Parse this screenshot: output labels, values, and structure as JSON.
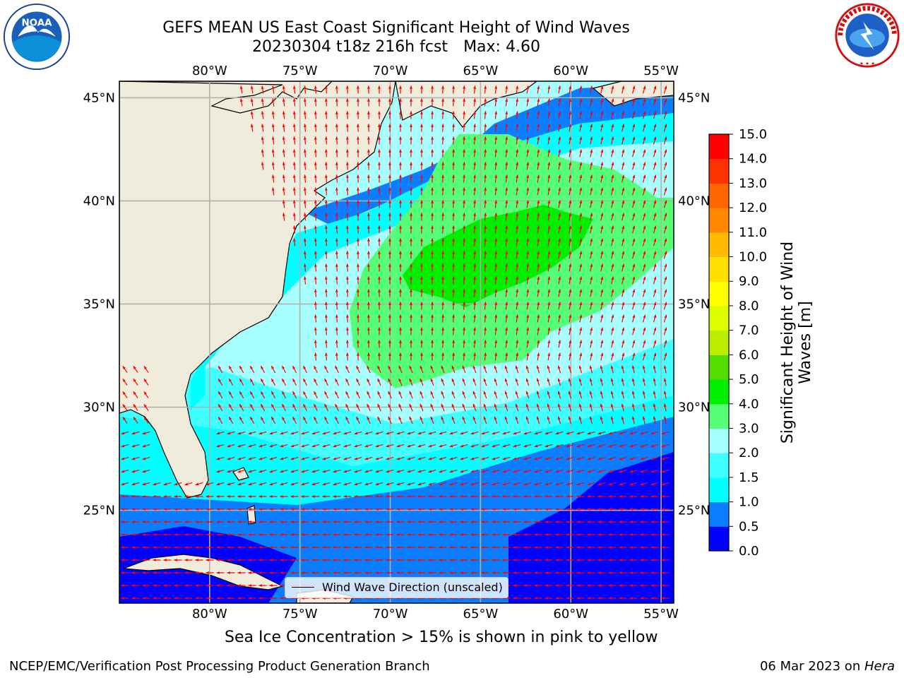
{
  "title": {
    "line1": "GEFS MEAN US East Coast Significant Height of Wind Waves",
    "line2_left": "20230304 t18z 216h fcst",
    "line2_right": "Max: 4.60"
  },
  "logos": {
    "left": {
      "icon": "noaa-logo",
      "text": "NOAA"
    },
    "right": {
      "icon": "nws-logo",
      "text": "NATIONAL WEATHER SERVICE"
    }
  },
  "map": {
    "lon_labels": [
      "80°W",
      "75°W",
      "70°W",
      "65°W",
      "60°W",
      "55°W"
    ],
    "lat_labels": [
      "45°N",
      "40°N",
      "35°N",
      "30°N",
      "25°N"
    ],
    "lon_values": [
      -80,
      -75,
      -70,
      -65,
      -60,
      -55
    ],
    "lat_values": [
      45,
      40,
      35,
      30,
      25
    ],
    "extent": {
      "lon": [
        -85,
        -54.3
      ],
      "lat": [
        20.5,
        45.8
      ]
    },
    "legend": "Wind Wave Direction (unscaled)",
    "land_color": "#efecdc",
    "arrow_color": "#ff0000",
    "grid_color": "#b0b0b0"
  },
  "colorbar": {
    "label": "Significant Height of Wind Waves [m]",
    "ticks": [
      "0.0",
      "0.5",
      "1.0",
      "1.5",
      "2.0",
      "3.0",
      "4.0",
      "5.0",
      "6.0",
      "7.0",
      "8.0",
      "9.0",
      "10.0",
      "11.0",
      "12.0",
      "13.0",
      "14.0",
      "15.0"
    ],
    "colors": [
      "#0000ff",
      "#0a7eff",
      "#00ffff",
      "#40ffff",
      "#a8ffff",
      "#55ff77",
      "#00ee00",
      "#55dd00",
      "#bbee00",
      "#ddff00",
      "#ffff00",
      "#ffe000",
      "#ffbb00",
      "#ff8800",
      "#ff6600",
      "#ff3300",
      "#ff0000"
    ]
  },
  "notes": {
    "ice": "Sea Ice Concentration > 15% is shown in pink to yellow",
    "footer_left": "NCEP/EMC/Verification Post Processing Product Generation Branch",
    "footer_date": "06 Mar 2023 on ",
    "footer_machine": "Hera"
  }
}
